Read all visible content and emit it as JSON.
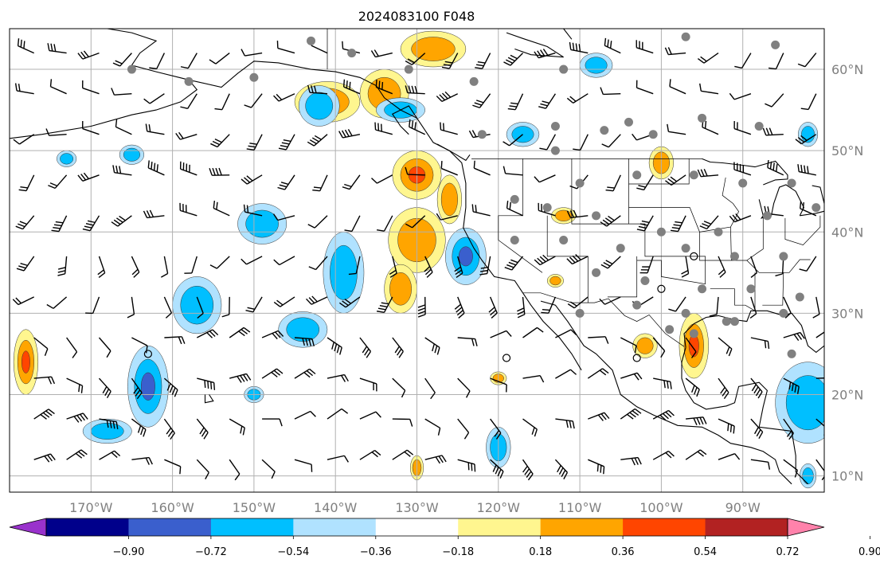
{
  "map": {
    "title": "2024083100 F048",
    "extent": {
      "lon": [
        -180,
        -80
      ],
      "lat": [
        8,
        65
      ]
    },
    "gridlines": true,
    "lon_ticks": [
      {
        "value": -170,
        "label": "170°W"
      },
      {
        "value": -160,
        "label": "160°W"
      },
      {
        "value": -150,
        "label": "150°W"
      },
      {
        "value": -140,
        "label": "140°W"
      },
      {
        "value": -130,
        "label": "130°W"
      },
      {
        "value": -120,
        "label": "120°W"
      },
      {
        "value": -110,
        "label": "110°W"
      },
      {
        "value": -100,
        "label": "100°W"
      },
      {
        "value": -90,
        "label": "90°W"
      }
    ],
    "lat_ticks": [
      {
        "value": 10,
        "label": "10°N"
      },
      {
        "value": 20,
        "label": "20°N"
      },
      {
        "value": 30,
        "label": "30°N"
      },
      {
        "value": 40,
        "label": "40°N"
      },
      {
        "value": 50,
        "label": "50°N"
      },
      {
        "value": 60,
        "label": "60°N"
      }
    ],
    "colorbar": {
      "extend": "both",
      "colors": [
        "#9932cc",
        "#00008b",
        "#3a5fcd",
        "#00bfff",
        "#b0e2ff",
        "#ffffff",
        "#fff68f",
        "#ffa500",
        "#ff4500",
        "#b22222",
        "#ff82ab"
      ],
      "boundaries": [
        -0.9,
        -0.72,
        -0.54,
        -0.36,
        -0.18,
        0.18,
        0.36,
        0.54,
        0.72,
        0.9
      ],
      "tick_labels": [
        "−0.90",
        "−0.72",
        "−0.54",
        "−0.36",
        "−0.18",
        "0.18",
        "0.36",
        "0.54",
        "0.72",
        "0.90"
      ]
    },
    "colors": {
      "coast": "#000000",
      "grid": "#b0b0b0",
      "station": "#808080",
      "tick_label": "#7f7f7f"
    },
    "anomaly_blobs": [
      {
        "lon": -128,
        "lat": 62.5,
        "rx": 4,
        "ry": 2.2,
        "value": 0.4
      },
      {
        "lon": -134,
        "lat": 57,
        "rx": 3,
        "ry": 3,
        "value": 0.4
      },
      {
        "lon": -141,
        "lat": 56,
        "rx": 4,
        "ry": 2.5,
        "value": 0.45
      },
      {
        "lon": -130,
        "lat": 47,
        "rx": 3,
        "ry": 3,
        "value": 0.62
      },
      {
        "lon": -126,
        "lat": 44,
        "rx": 1.5,
        "ry": 3,
        "value": 0.4
      },
      {
        "lon": -130,
        "lat": 39,
        "rx": 3.5,
        "ry": 4,
        "value": 0.45
      },
      {
        "lon": -132,
        "lat": 33,
        "rx": 2,
        "ry": 3,
        "value": 0.42
      },
      {
        "lon": -100,
        "lat": 48.5,
        "rx": 1.5,
        "ry": 2,
        "value": 0.4
      },
      {
        "lon": -96,
        "lat": 26,
        "rx": 1.8,
        "ry": 4,
        "value": 0.6
      },
      {
        "lon": -102,
        "lat": 26,
        "rx": 1.5,
        "ry": 1.5,
        "value": 0.4
      },
      {
        "lon": -178,
        "lat": 24,
        "rx": 1.5,
        "ry": 4,
        "value": 0.62
      },
      {
        "lon": -130,
        "lat": 11,
        "rx": 0.8,
        "ry": 1.5,
        "value": 0.5
      },
      {
        "lon": -112,
        "lat": 42,
        "rx": 1.5,
        "ry": 1,
        "value": 0.4
      },
      {
        "lon": -113,
        "lat": 34,
        "rx": 1,
        "ry": 0.8,
        "value": 0.4
      },
      {
        "lon": -120,
        "lat": 22,
        "rx": 1,
        "ry": 0.8,
        "value": 0.4
      },
      {
        "lon": -142,
        "lat": 55.5,
        "rx": 2.5,
        "ry": 2.5,
        "value": -0.4
      },
      {
        "lon": -149,
        "lat": 41,
        "rx": 3,
        "ry": 2.5,
        "value": -0.5
      },
      {
        "lon": -139,
        "lat": 35,
        "rx": 2.5,
        "ry": 5,
        "value": -0.5
      },
      {
        "lon": -144,
        "lat": 28,
        "rx": 3,
        "ry": 2.2,
        "value": -0.4
      },
      {
        "lon": -157,
        "lat": 31,
        "rx": 3,
        "ry": 3.5,
        "value": -0.45
      },
      {
        "lon": -163,
        "lat": 21,
        "rx": 2.5,
        "ry": 5,
        "value": -0.55
      },
      {
        "lon": -168,
        "lat": 15.5,
        "rx": 3,
        "ry": 1.5,
        "value": -0.45
      },
      {
        "lon": -108,
        "lat": 60.5,
        "rx": 2,
        "ry": 1.5,
        "value": -0.4
      },
      {
        "lon": -117,
        "lat": 52,
        "rx": 2,
        "ry": 1.5,
        "value": -0.4
      },
      {
        "lon": -124,
        "lat": 37,
        "rx": 2.5,
        "ry": 3.5,
        "value": -0.55
      },
      {
        "lon": -82,
        "lat": 19,
        "rx": 4,
        "ry": 5,
        "value": -0.5
      },
      {
        "lon": -120,
        "lat": 13.5,
        "rx": 1.5,
        "ry": 2.5,
        "value": -0.4
      },
      {
        "lon": -173,
        "lat": 49,
        "rx": 1.2,
        "ry": 1,
        "value": -0.4
      },
      {
        "lon": -165,
        "lat": 49.5,
        "rx": 1.5,
        "ry": 1.2,
        "value": -0.4
      },
      {
        "lon": -150,
        "lat": 20,
        "rx": 1.2,
        "ry": 1,
        "value": -0.4
      },
      {
        "lon": -132,
        "lat": 55,
        "rx": 3,
        "ry": 1.5,
        "value": -0.4
      },
      {
        "lon": -82,
        "lat": 52,
        "rx": 1.2,
        "ry": 1.5,
        "value": -0.4
      },
      {
        "lon": -82,
        "lat": 10,
        "rx": 1,
        "ry": 1.5,
        "value": -0.4
      }
    ],
    "stations": [
      [
        -165,
        60
      ],
      [
        -143,
        63.5
      ],
      [
        -138,
        62
      ],
      [
        -158,
        58.5
      ],
      [
        -150,
        59
      ],
      [
        -131,
        60
      ],
      [
        -123,
        58.5
      ],
      [
        -112,
        60
      ],
      [
        -97,
        64
      ],
      [
        -86,
        63
      ],
      [
        -122,
        52
      ],
      [
        -113,
        50
      ],
      [
        -107,
        52.5
      ],
      [
        -104,
        53.5
      ],
      [
        -101,
        52
      ],
      [
        -95,
        54
      ],
      [
        -88,
        53
      ],
      [
        -113,
        53
      ],
      [
        -110,
        46
      ],
      [
        -103,
        47
      ],
      [
        -96,
        47
      ],
      [
        -90,
        46
      ],
      [
        -84,
        46
      ],
      [
        -118,
        44
      ],
      [
        -114,
        43
      ],
      [
        -108,
        42
      ],
      [
        -100,
        40
      ],
      [
        -93,
        40
      ],
      [
        -87,
        42
      ],
      [
        -81,
        43
      ],
      [
        -118,
        39
      ],
      [
        -112,
        39
      ],
      [
        -105,
        38
      ],
      [
        -97,
        38
      ],
      [
        -91,
        37
      ],
      [
        -85,
        37
      ],
      [
        -108,
        35
      ],
      [
        -102,
        34
      ],
      [
        -95,
        33
      ],
      [
        -89,
        33
      ],
      [
        -83,
        32
      ],
      [
        -110,
        30
      ],
      [
        -103,
        31
      ],
      [
        -97,
        30
      ],
      [
        -91,
        29
      ],
      [
        -85,
        30
      ],
      [
        -99,
        28
      ],
      [
        -96,
        27.5
      ],
      [
        -92,
        29
      ],
      [
        -84,
        25
      ]
    ],
    "hollow_stations": [
      [
        -163,
        25
      ],
      [
        -119,
        24.5
      ],
      [
        -96,
        37
      ],
      [
        -100,
        33
      ],
      [
        -103,
        24.5
      ]
    ]
  }
}
